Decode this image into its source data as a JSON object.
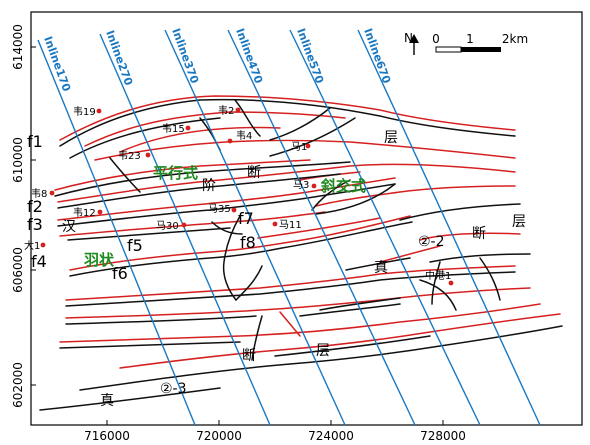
{
  "map": {
    "axes": {
      "x_ticks": [
        "716000",
        "720000",
        "724000",
        "728000"
      ],
      "y_ticks": [
        "614000",
        "610000",
        "606000",
        "602000"
      ]
    },
    "north_arrow": {
      "label": "N"
    },
    "scale_bar": {
      "labels": [
        "0",
        "1",
        "2km"
      ]
    },
    "inlines": [
      "Inline170",
      "Inline270",
      "Inline370",
      "Inline470",
      "Inline570",
      "Inline670"
    ],
    "wells": [
      "韦19",
      "韦2",
      "韦15",
      "韦4",
      "马1",
      "韦23",
      "韦8",
      "韦12",
      "马3",
      "马35",
      "马30",
      "马11",
      "大1",
      "中港1"
    ],
    "fault_labels": [
      "f1",
      "f2",
      "f3",
      "f4",
      "f5",
      "f6",
      "f7",
      "f8"
    ],
    "pattern_labels": [
      "平行式",
      "斜交式",
      "羽状"
    ],
    "structure_labels": [
      "层",
      "断",
      "阶",
      "汉",
      "断",
      "层",
      "真",
      "断",
      "层",
      "真",
      "②-2",
      "②-3"
    ],
    "colors": {
      "inline": "#1a78c2",
      "fault_red": "#d62020",
      "fault_black": "#111111",
      "well": "#d62020",
      "pattern_text": "#1f8a1f"
    }
  }
}
